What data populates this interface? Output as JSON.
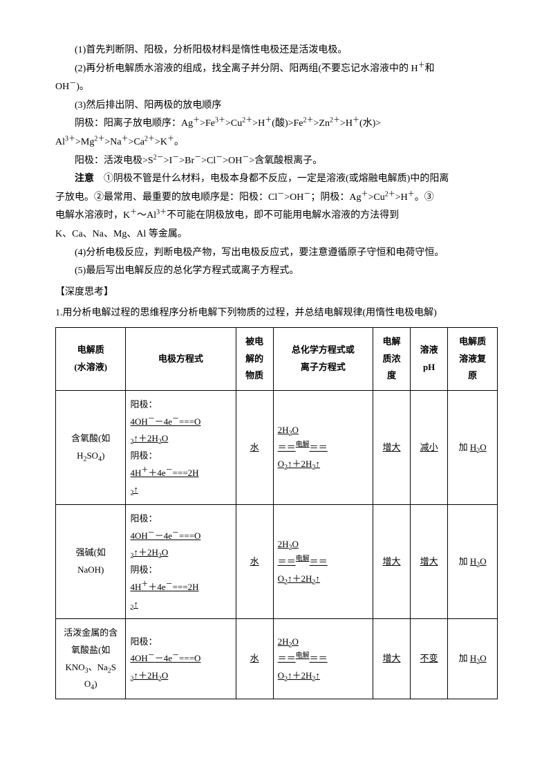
{
  "paragraphs": {
    "p1": "(1)首先判断阴、阳极，分析阳极材料是惰性电极还是活泼电极。",
    "p2_a": "(2)再分析电解质水溶液的组成，找全离子并分阴、阳两组(不要忘记水溶液中的 H",
    "p2_b": "和",
    "p2_c": "OH",
    "p2_d": ")。",
    "p3": "(3)然后排出阴、阳两极的放电顺序",
    "p4_label": "阴极：阳离子放电顺序：Ag",
    "p4_rest": ">Fe",
    "p4_a": ">Cu",
    "p4_b": ">H",
    "p4_acid": "(酸)>Fe",
    "p4_c": ">Zn",
    "p4_d": ">H",
    "p4_water": "(水)>",
    "p5_a": "Al",
    "p5_b": ">Mg",
    "p5_c": ">Na",
    "p5_d": ">Ca",
    "p5_e": ">K",
    "p5_end": "。",
    "p6_label": "阳极：活泼电极>S",
    "p6_a": ">I",
    "p6_b": ">Br",
    "p6_c": ">Cl",
    "p6_d": ">OH",
    "p6_e": ">含氧酸根离子。",
    "note_bold": "注意",
    "note_a": "　①阴极不管是什么材料，电极本身都不反应，一定是溶液(或熔融电解质)中的阳离",
    "note_b": "子放电。②最常用、最重要的放电顺序是：阳极：Cl",
    "note_c": ">OH",
    "note_d": "；阴极：Ag",
    "note_e": ">Cu",
    "note_f": ">H",
    "note_g": "。③",
    "note_h": "电解水溶液时，K",
    "note_i": "～Al",
    "note_j": "不可能在阴极放电，即不可能用电解水溶液的方法得到",
    "note_k": "K、Ca、Na、Mg、Al 等金属。",
    "p7": "(4)分析电极反应，判断电极产物，写出电极反应式，要注意遵循原子守恒和电荷守恒。",
    "p8": "(5)最后写出电解反应的总化学方程式或离子方程式。",
    "deep": "【深度思考】",
    "q1": "1.用分析电解过程的思维程序分析电解下列物质的过程，并总结电解规律(用惰性电极电解)"
  },
  "table": {
    "headers": {
      "c1a": "电解质",
      "c1b": "(水溶液)",
      "c2": "电极方程式",
      "c3a": "被电",
      "c3b": "解的",
      "c3c": "物质",
      "c4a": "总化学方程式或",
      "c4b": "离子方程式",
      "c5a": "电解",
      "c5b": "质浓",
      "c5c": "度",
      "c6a": "溶液",
      "c6b": "pH",
      "c7a": "电解质",
      "c7b": "溶液复",
      "c7c": "原"
    },
    "rows": [
      {
        "name_a": "含氧酸(如",
        "name_b": "H",
        "name_b_sub": "2",
        "name_c": "SO",
        "name_c_sub": "4",
        "name_d": ")",
        "anode_label": "阳极：",
        "anode_eq_a": "4OH",
        "anode_eq_b": "－4e",
        "anode_eq_c": "===O",
        "anode_eq_d": "↑＋2H",
        "anode_eq_e": "O",
        "cathode_label": "阴极：",
        "cathode_eq_a": "4H",
        "cathode_eq_b": "＋4e",
        "cathode_eq_c": "===2H",
        "cathode_eq_d": "↑",
        "substance": "水",
        "total_a": "2H",
        "total_b": "O",
        "total_mid": "电解",
        "total_c": "O",
        "total_d": "↑＋2H",
        "total_e": "↑",
        "conc": "增大",
        "ph": "减小",
        "restore_a": "加",
        "restore_b": "H",
        "restore_c": "O"
      },
      {
        "name_a": "强碱(如",
        "name_b": "NaOH)",
        "anode_label": "阳极：",
        "anode_eq_a": "4OH",
        "anode_eq_b": "－4e",
        "anode_eq_c": "===O",
        "anode_eq_d": "↑＋2H",
        "anode_eq_e": "O",
        "cathode_label": "阴极：",
        "cathode_eq_a": "4H",
        "cathode_eq_b": "＋4e",
        "cathode_eq_c": "===2H",
        "cathode_eq_d": "↑",
        "substance": "水",
        "total_a": "2H",
        "total_b": "O",
        "total_mid": "电解",
        "total_c": "O",
        "total_d": "↑＋2H",
        "total_e": "↑",
        "conc": "增大",
        "ph": "增大",
        "restore_a": "加",
        "restore_b": "H",
        "restore_c": "O"
      },
      {
        "name_a": "活泼金属的含",
        "name_b": "氧酸盐(如",
        "name_c": "KNO",
        "name_c_sub": "3",
        "name_d": "、Na",
        "name_d_sub": "2",
        "name_e": "S",
        "name_f": "O",
        "name_f_sub": "4",
        "name_g": ")",
        "anode_label": "阳极：",
        "anode_eq_a": "4OH",
        "anode_eq_b": "－4e",
        "anode_eq_c": "===O",
        "anode_eq_d": "↑＋2H",
        "anode_eq_e": "O",
        "substance": "水",
        "total_a": "2H",
        "total_b": "O",
        "total_mid": "电解",
        "total_c": "O",
        "total_d": "↑＋2H",
        "total_e": "↑",
        "conc": "增大",
        "ph": "不变",
        "restore_a": "加",
        "restore_b": "H",
        "restore_c": "O"
      }
    ]
  }
}
